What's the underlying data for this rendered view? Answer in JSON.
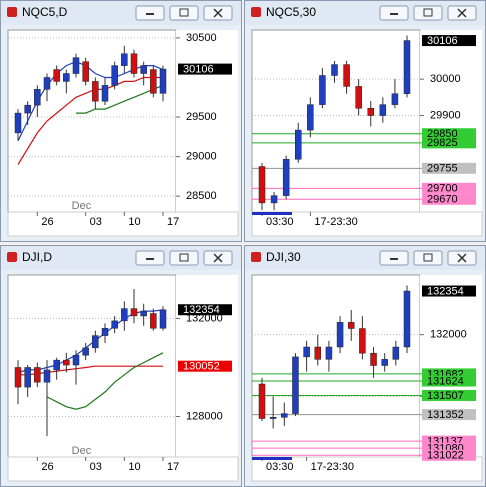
{
  "chart_data": [
    {
      "type": "candlestick",
      "title": "NQC5,D",
      "ylim": [
        28300,
        30600
      ],
      "yticks": [
        30500,
        29500,
        29000,
        28500
      ],
      "categories": [
        null,
        null,
        "26",
        null,
        null,
        null,
        null,
        "03",
        null,
        null,
        null,
        "10",
        null,
        null,
        null,
        "17"
      ],
      "month_label": "Dec",
      "month_at": 7,
      "open": [
        29300,
        29550,
        29650,
        29850,
        30100,
        29950,
        30050,
        30200,
        29950,
        29700,
        29900,
        30150,
        30300,
        30050,
        30100,
        29800
      ],
      "high": [
        29600,
        29700,
        29900,
        30050,
        30150,
        30100,
        30300,
        30250,
        30000,
        30000,
        30200,
        30400,
        30350,
        30200,
        30150,
        30150
      ],
      "low": [
        29200,
        29400,
        29500,
        29700,
        29900,
        29800,
        30000,
        29900,
        29600,
        29650,
        29850,
        30050,
        30000,
        29900,
        29750,
        29700
      ],
      "close": [
        29550,
        29650,
        29850,
        30000,
        29950,
        30050,
        30250,
        29950,
        29700,
        29900,
        30150,
        30300,
        30050,
        30150,
        29800,
        30106
      ],
      "up_color": "#1f3fbf",
      "down_color": "#d01010",
      "series": [
        {
          "color": "#1f3fbf",
          "values": [
            29200,
            29450,
            29700,
            29900,
            30050,
            30150,
            30200,
            30150,
            30050,
            30000,
            30000,
            30050,
            30100,
            30150,
            30150,
            30100
          ]
        },
        {
          "color": "#d01010",
          "values": [
            28900,
            29100,
            29300,
            29450,
            29550,
            29650,
            29750,
            29800,
            29850,
            29850,
            29900,
            29950,
            29950,
            30000,
            30000,
            30000
          ]
        },
        {
          "color": "#1a7a1a",
          "values": [
            null,
            null,
            null,
            null,
            null,
            null,
            29550,
            29550,
            29600,
            29600,
            29650,
            29700,
            29750,
            29800,
            29850,
            29900
          ]
        }
      ],
      "price_labels": [
        {
          "value": 30106,
          "color": "#000000"
        }
      ]
    },
    {
      "type": "candlestick",
      "title": "NQC5,30",
      "ylim": [
        29635,
        30135
      ],
      "yticks": [
        30000,
        29900
      ],
      "categories": [
        "03:30",
        null,
        null,
        null,
        "17-23:30",
        null,
        null,
        null,
        null,
        null,
        null,
        null,
        null
      ],
      "open": [
        29760,
        29660,
        29680,
        29780,
        29860,
        29930,
        30010,
        30040,
        29980,
        29920,
        29900,
        29930,
        29960
      ],
      "high": [
        29770,
        29690,
        29790,
        29880,
        29950,
        30030,
        30050,
        30050,
        30000,
        29940,
        29950,
        30000,
        30120
      ],
      "low": [
        29640,
        29640,
        29670,
        29770,
        29840,
        29920,
        29990,
        29960,
        29900,
        29870,
        29880,
        29920,
        29950
      ],
      "close": [
        29660,
        29680,
        29780,
        29860,
        29930,
        30010,
        30040,
        29980,
        29920,
        29900,
        29930,
        29960,
        30106
      ],
      "up_color": "#1f3fbf",
      "down_color": "#d01010",
      "price_labels": [
        {
          "value": 30106,
          "color": "#000000"
        },
        {
          "value": 29850,
          "color": "#33cc33",
          "level_color": "#22aa22"
        },
        {
          "value": 29825,
          "color": "#33cc33",
          "level_color": "#22aa22"
        },
        {
          "value": 29755,
          "color": "#c0c0c0",
          "level_color": "#909090"
        },
        {
          "value": 29700,
          "color": "#ff88cc",
          "level_color": "#ff66bb"
        },
        {
          "value": 29670,
          "color": "#ff88cc",
          "level_color": "#ff66bb"
        }
      ]
    },
    {
      "type": "candlestick",
      "title": "DJI,D",
      "ylim": [
        126350,
        133770
      ],
      "yticks": [
        132000,
        128000
      ],
      "categories": [
        null,
        null,
        "26",
        null,
        null,
        null,
        null,
        "03",
        null,
        null,
        null,
        "10",
        null,
        null,
        null,
        "17"
      ],
      "month_label": "Dec",
      "month_at": 7,
      "open": [
        130000,
        129200,
        130000,
        129400,
        129900,
        130300,
        130100,
        130500,
        130800,
        131300,
        131600,
        131900,
        132400,
        132100,
        132200,
        131600
      ],
      "high": [
        130300,
        130100,
        130200,
        130300,
        130400,
        130600,
        130700,
        131000,
        131500,
        131800,
        132100,
        132700,
        133200,
        132600,
        132400,
        132500
      ],
      "low": [
        128500,
        128800,
        129200,
        127200,
        129500,
        129800,
        129300,
        130300,
        130600,
        131000,
        131400,
        131500,
        131800,
        131700,
        131500,
        131500
      ],
      "close": [
        129200,
        130000,
        129400,
        129900,
        130300,
        130100,
        130500,
        130800,
        131300,
        131600,
        131900,
        132400,
        132100,
        132300,
        131600,
        132354
      ],
      "up_color": "#1f3fbf",
      "down_color": "#d01010",
      "series": [
        {
          "color": "#1f3fbf",
          "values": [
            129800,
            129900,
            129900,
            130000,
            130100,
            130300,
            130500,
            130800,
            131100,
            131400,
            131700,
            132000,
            132200,
            132300,
            132300,
            132350
          ]
        },
        {
          "color": "#d01010",
          "values": [
            129700,
            129700,
            129750,
            129800,
            129850,
            129900,
            129950,
            130000,
            130050,
            130050,
            130050,
            130050,
            130050,
            130050,
            130050,
            130052
          ]
        },
        {
          "color": "#1a7a1a",
          "values": [
            null,
            null,
            null,
            128800,
            128600,
            128400,
            128300,
            128400,
            128700,
            129000,
            129400,
            129700,
            130000,
            130200,
            130400,
            130600
          ]
        }
      ],
      "price_labels": [
        {
          "value": 132354,
          "color": "#000000"
        },
        {
          "value": 130052,
          "color": "#ee0000"
        }
      ]
    },
    {
      "type": "candlestick",
      "title": "DJI,30",
      "ylim": [
        131008,
        132484
      ],
      "yticks": [
        132000,
        131500
      ],
      "categories": [
        "03:30",
        null,
        null,
        null,
        "17-23:30",
        null,
        null,
        null,
        null,
        null,
        null,
        null,
        null,
        null
      ],
      "open": [
        131600,
        131320,
        131330,
        131360,
        131820,
        131900,
        131800,
        131900,
        132100,
        132050,
        131850,
        131750,
        131800,
        131900
      ],
      "high": [
        131650,
        131500,
        131450,
        131850,
        131950,
        132000,
        131950,
        132150,
        132200,
        132150,
        131900,
        131850,
        131950,
        132400
      ],
      "low": [
        131300,
        131240,
        131260,
        131340,
        131700,
        131750,
        131700,
        131850,
        131950,
        131800,
        131650,
        131700,
        131750,
        131850
      ],
      "close": [
        131320,
        131330,
        131360,
        131820,
        131900,
        131800,
        131900,
        132100,
        132050,
        131850,
        131750,
        131800,
        131900,
        132354
      ],
      "up_color": "#1f3fbf",
      "down_color": "#d01010",
      "price_labels": [
        {
          "value": 132354,
          "color": "#000000"
        },
        {
          "value": 131682,
          "color": "#33cc33",
          "level_color": "#22aa22"
        },
        {
          "value": 131624,
          "color": "#33cc33",
          "level_color": "#22aa22"
        },
        {
          "value": 131507,
          "color": "#33cc33",
          "level_color": "#22aa22"
        },
        {
          "value": 131352,
          "color": "#c0c0c0",
          "level_color": "#909090"
        },
        {
          "value": 131137,
          "color": "#ff88cc",
          "level_color": "#ff66bb"
        },
        {
          "value": 131080,
          "color": "#ff88cc",
          "level_color": "#ff66bb"
        },
        {
          "value": 131022,
          "color": "#ff88cc",
          "level_color": "#ff66bb"
        }
      ]
    }
  ]
}
